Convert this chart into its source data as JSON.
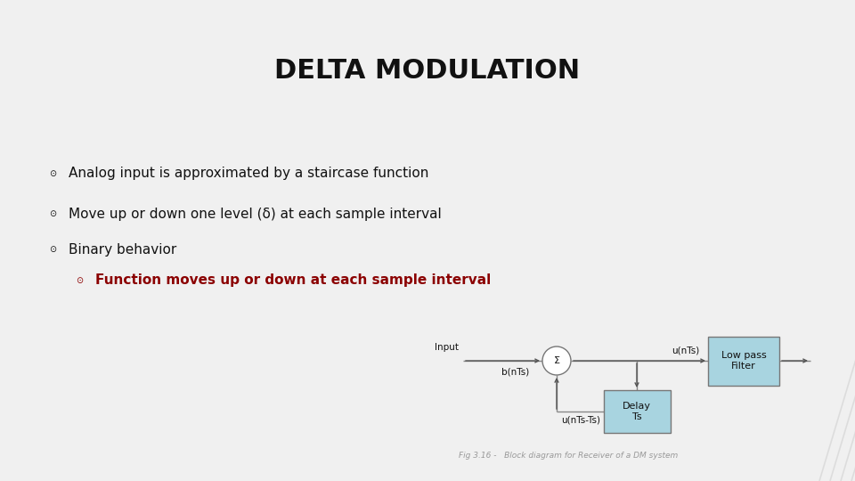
{
  "title": "DELTA MODULATION",
  "background_color": "#f0f0f0",
  "title_color": "#111111",
  "title_fontsize": 22,
  "bullet_color": "#111111",
  "bullet_fontsize": 11,
  "sub_bullet_color": "#8b0000",
  "sub_bullet_fontsize": 11,
  "bullets": [
    "Analog input is approximated by a staircase function",
    "Move up or down one level (δ) at each sample interval",
    "Binary behavior"
  ],
  "sub_bullet": "Function moves up or down at each sample interval",
  "bullet_symbol": "⊙",
  "diagram": {
    "box_color": "#a8d4e0",
    "box_edge_color": "#777777",
    "circle_color": "#ffffff",
    "circle_edge_color": "#777777",
    "line_color": "#888888",
    "arrow_color": "#555555",
    "text_color": "#111111",
    "caption_color": "#999999",
    "caption_fontsize": 6.5,
    "caption": "Fig 3.16 -   Block diagram for Receiver of a DM system",
    "delay_box_label": "Delay\nTs",
    "lpf_box_label": "Low pass\nFilter",
    "sigma_label": "Σ",
    "input_label": "Input",
    "b_label": "b(nTs)",
    "u_label": "u(nTs)",
    "u_delay_label": "u(nTs-Ts)"
  }
}
